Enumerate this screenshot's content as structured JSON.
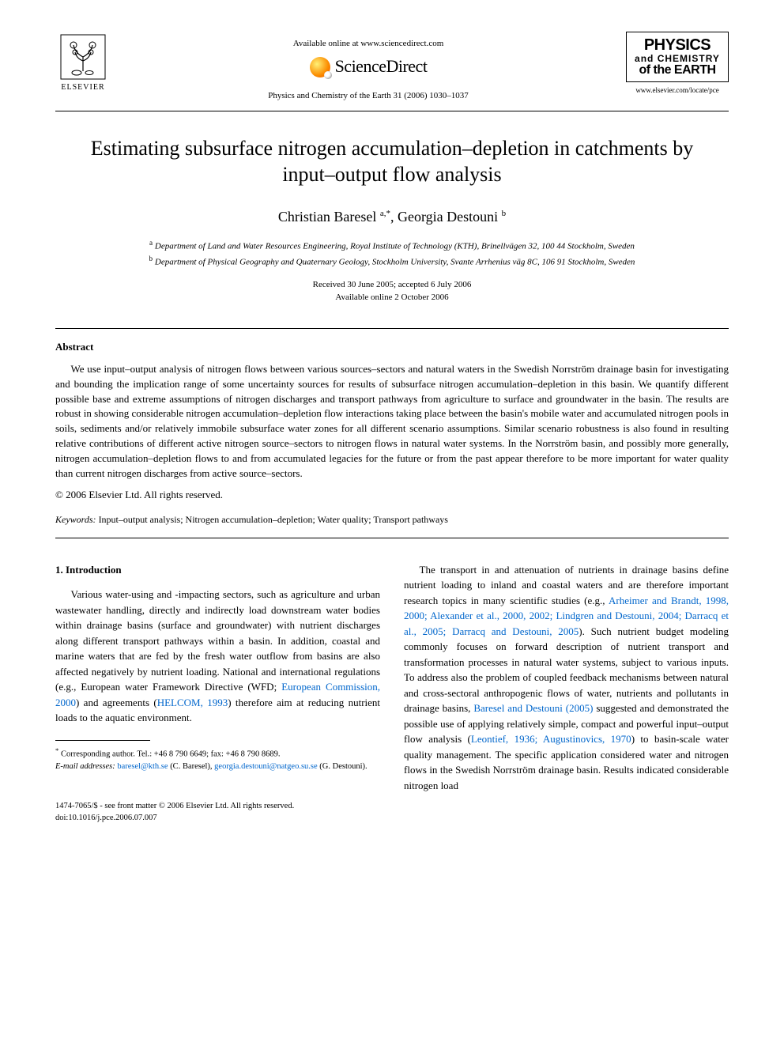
{
  "header": {
    "publisher": "ELSEVIER",
    "available": "Available online at www.sciencedirect.com",
    "sd_brand": "ScienceDirect",
    "journal_ref": "Physics and Chemistry of the Earth 31 (2006) 1030–1037",
    "journal_title_l1": "PHYSICS",
    "journal_title_l2": "and CHEMISTRY",
    "journal_title_l3": "of the EARTH",
    "journal_url": "www.elsevier.com/locate/pce"
  },
  "title": "Estimating subsurface nitrogen accumulation–depletion in catchments by input–output flow analysis",
  "authors_html": "Christian Baresel <sup>a,*</sup>, Georgia Destouni <sup>b</sup>",
  "affiliations": {
    "a": "Department of Land and Water Resources Engineering, Royal Institute of Technology (KTH), Brinellvägen 32, 100 44 Stockholm, Sweden",
    "b": "Department of Physical Geography and Quaternary Geology, Stockholm University, Svante Arrhenius väg 8C, 106 91 Stockholm, Sweden"
  },
  "dates": {
    "received": "Received 30 June 2005; accepted 6 July 2006",
    "online": "Available online 2 October 2006"
  },
  "abstract": {
    "heading": "Abstract",
    "text": "We use input–output analysis of nitrogen flows between various sources–sectors and natural waters in the Swedish Norrström drainage basin for investigating and bounding the implication range of some uncertainty sources for results of subsurface nitrogen accumulation–depletion in this basin. We quantify different possible base and extreme assumptions of nitrogen discharges and transport pathways from agriculture to surface and groundwater in the basin. The results are robust in showing considerable nitrogen accumulation–depletion flow interactions taking place between the basin's mobile water and accumulated nitrogen pools in soils, sediments and/or relatively immobile subsurface water zones for all different scenario assumptions. Similar scenario robustness is also found in resulting relative contributions of different active nitrogen source–sectors to nitrogen flows in natural water systems. In the Norrström basin, and possibly more generally, nitrogen accumulation–depletion flows to and from accumulated legacies for the future or from the past appear therefore to be more important for water quality than current nitrogen discharges from active source–sectors.",
    "copyright": "© 2006 Elsevier Ltd. All rights reserved."
  },
  "keywords": {
    "label": "Keywords:",
    "text": "Input–output analysis; Nitrogen accumulation–depletion; Water quality; Transport pathways"
  },
  "body": {
    "section_heading": "1. Introduction",
    "col1_p1_pre": "Various water-using and -impacting sectors, such as agriculture and urban wastewater handling, directly and indirectly load downstream water bodies within drainage basins (surface and groundwater) with nutrient discharges along different transport pathways within a basin. In addition, coastal and marine waters that are fed by the fresh water outflow from basins are also affected negatively by nutrient loading. National and international regulations (e.g., European water Framework Directive (WFD; ",
    "col1_link1": "European Commission, 2000",
    "col1_mid1": ") and agreements (",
    "col1_link2": "HELCOM, 1993",
    "col1_p1_post": ") therefore aim at reducing nutrient loads to the aquatic environment.",
    "col2_p1_pre": "The transport in and attenuation of nutrients in drainage basins define nutrient loading to inland and coastal waters and are therefore important research topics in many scientific studies (e.g., ",
    "col2_link1": "Arheimer and Brandt, 1998, 2000; Alexander et al., 2000, 2002; Lindgren and Destouni, 2004; Darracq et al., 2005; Darracq and Destouni, 2005",
    "col2_mid1": "). Such nutrient budget modeling commonly focuses on forward description of nutrient transport and transformation processes in natural water systems, subject to various inputs. To address also the problem of coupled feedback mechanisms between natural and cross-sectoral anthropogenic flows of water, nutrients and pollutants in drainage basins, ",
    "col2_link2": "Baresel and Destouni (2005)",
    "col2_mid2": " suggested and demonstrated the possible use of applying relatively simple, compact and powerful input–output flow analysis (",
    "col2_link3": "Leontief, 1936; Augustinovics, 1970",
    "col2_p1_post": ") to basin-scale water quality management. The specific application considered water and nitrogen flows in the Swedish Norrström drainage basin. Results indicated considerable nitrogen load"
  },
  "footnotes": {
    "corresp": "Corresponding author. Tel.: +46 8 790 6649; fax: +46 8 790 8689.",
    "email_label": "E-mail addresses:",
    "email1": "baresel@kth.se",
    "email1_who": "(C. Baresel),",
    "email2": "georgia.destouni@natgeo.su.se",
    "email2_who": "(G. Destouni)."
  },
  "footer": {
    "left": "1474-7065/$ - see front matter © 2006 Elsevier Ltd. All rights reserved.",
    "doi": "doi:10.1016/j.pce.2006.07.007"
  },
  "colors": {
    "link": "#0066cc",
    "text": "#000000",
    "bg": "#ffffff"
  }
}
